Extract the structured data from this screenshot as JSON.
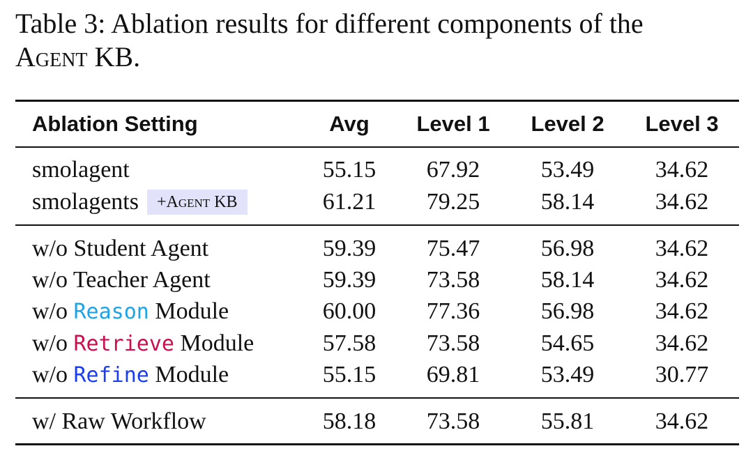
{
  "caption": {
    "prefix": "Table 3: Ablation results for different components of the",
    "name_small_caps": "Agent",
    "name_rest": "KB."
  },
  "table": {
    "headers": [
      "Ablation Setting",
      "Avg",
      "Level 1",
      "Level 2",
      "Level 3"
    ],
    "baseline_rows": [
      {
        "setting": "smolagent",
        "values": [
          "55.15",
          "67.92",
          "53.49",
          "34.62"
        ]
      },
      {
        "setting": "smolagents",
        "badge_plus": "+",
        "badge_sc": "Agent",
        "badge_rest": " KB",
        "values": [
          "61.21",
          "79.25",
          "58.14",
          "34.62"
        ]
      }
    ],
    "ablation_rows": [
      {
        "prefix": "w/o Student Agent",
        "values": [
          "59.39",
          "75.47",
          "56.98",
          "34.62"
        ]
      },
      {
        "prefix": "w/o Teacher Agent",
        "values": [
          "59.39",
          "73.58",
          "58.14",
          "34.62"
        ]
      },
      {
        "prefix": "w/o ",
        "module": "Reason",
        "suffix": " Module",
        "module_color": "#1ea4e6",
        "values": [
          "60.00",
          "77.36",
          "56.98",
          "34.62"
        ]
      },
      {
        "prefix": "w/o ",
        "module": "Retrieve",
        "suffix": " Module",
        "module_color": "#c8104e",
        "values": [
          "57.58",
          "73.58",
          "54.65",
          "34.62"
        ]
      },
      {
        "prefix": "w/o ",
        "module": "Refine",
        "suffix": " Module",
        "module_color": "#1a3ef0",
        "values": [
          "55.15",
          "69.81",
          "53.49",
          "30.77"
        ]
      }
    ],
    "final_rows": [
      {
        "setting": "w/ Raw Workflow",
        "values": [
          "58.18",
          "73.58",
          "55.81",
          "34.62"
        ]
      }
    ],
    "badge_color": "#e2e2fb"
  }
}
